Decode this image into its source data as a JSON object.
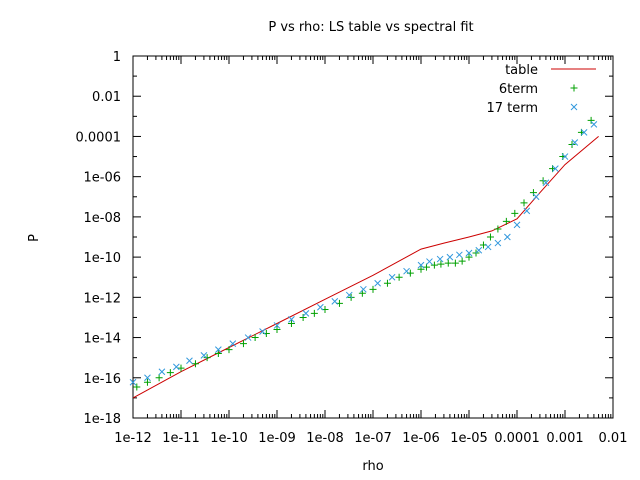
{
  "chart_data": {
    "type": "scatter",
    "title": "P vs rho: LS table vs spectral fit",
    "xlabel": "rho",
    "ylabel": "P",
    "xscale": "log",
    "yscale": "log",
    "xlim": [
      1e-12,
      0.01
    ],
    "ylim": [
      1e-18,
      1
    ],
    "x_ticks": [
      1e-12,
      1e-11,
      1e-10,
      1e-09,
      1e-08,
      1e-07,
      1e-06,
      1e-05,
      0.0001,
      0.001,
      0.01
    ],
    "x_tick_labels": [
      "1e-12",
      "1e-11",
      "1e-10",
      "1e-09",
      "1e-08",
      "1e-07",
      "1e-06",
      "1e-05",
      "0.0001",
      "0.001",
      "0.01"
    ],
    "y_ticks": [
      1e-18,
      1e-16,
      1e-14,
      1e-12,
      1e-10,
      1e-08,
      1e-06,
      0.0001,
      0.01,
      1
    ],
    "y_tick_labels": [
      "1e-18",
      "1e-16",
      "1e-14",
      "1e-12",
      "1e-10",
      "1e-08",
      "1e-06",
      "0.0001",
      "0.01",
      "1"
    ],
    "grid": false,
    "legend_position": "top-right",
    "series": [
      {
        "name": "table",
        "style": "line",
        "color": "#cc0000",
        "points": [
          [
            1e-12,
            1e-17
          ],
          [
            1e-11,
            2e-16
          ],
          [
            1e-10,
            3.2e-15
          ],
          [
            1e-09,
            5e-14
          ],
          [
            1e-08,
            8e-13
          ],
          [
            1e-07,
            1.25e-11
          ],
          [
            1e-06,
            2.5e-10
          ],
          [
            3e-06,
            5e-10
          ],
          [
            1e-05,
            1e-09
          ],
          [
            3e-05,
            2e-09
          ],
          [
            0.0001,
            8e-09
          ],
          [
            0.0003,
            1.6e-07
          ],
          [
            0.001,
            4e-06
          ],
          [
            0.005,
            0.0001
          ]
        ]
      },
      {
        "name": "6term",
        "style": "plus",
        "color": "#00a000",
        "points": [
          [
            1.2e-12,
            3.5e-17
          ],
          [
            2e-12,
            6e-17
          ],
          [
            3.5e-12,
            1e-16
          ],
          [
            6e-12,
            1.8e-16
          ],
          [
            1e-11,
            3e-16
          ],
          [
            2e-11,
            5e-16
          ],
          [
            3.5e-11,
            1e-15
          ],
          [
            6e-11,
            1.6e-15
          ],
          [
            1e-10,
            2.5e-15
          ],
          [
            2e-10,
            5e-15
          ],
          [
            3.5e-10,
            1e-14
          ],
          [
            6e-10,
            1.6e-14
          ],
          [
            1e-09,
            2.5e-14
          ],
          [
            2e-09,
            5e-14
          ],
          [
            3.5e-09,
            1e-13
          ],
          [
            6e-09,
            1.6e-13
          ],
          [
            1e-08,
            2.5e-13
          ],
          [
            2e-08,
            5e-13
          ],
          [
            3.5e-08,
            1e-12
          ],
          [
            6e-08,
            1.6e-12
          ],
          [
            1e-07,
            2.5e-12
          ],
          [
            2e-07,
            5e-12
          ],
          [
            3.5e-07,
            1e-11
          ],
          [
            6e-07,
            1.6e-11
          ],
          [
            1e-06,
            2.5e-11
          ],
          [
            1.3e-06,
            3.2e-11
          ],
          [
            1.9e-06,
            4e-11
          ],
          [
            2.6e-06,
            4.5e-11
          ],
          [
            3.7e-06,
            5e-11
          ],
          [
            5.2e-06,
            5e-11
          ],
          [
            7.2e-06,
            6.3e-11
          ],
          [
            1e-05,
            1e-10
          ],
          [
            1.4e-05,
            1.6e-10
          ],
          [
            2e-05,
            4e-10
          ],
          [
            2.8e-05,
            1e-09
          ],
          [
            4e-05,
            2.5e-09
          ],
          [
            6e-05,
            6e-09
          ],
          [
            9e-05,
            1.5e-08
          ],
          [
            0.00014,
            5e-08
          ],
          [
            0.00022,
            1.6e-07
          ],
          [
            0.00035,
            6.3e-07
          ],
          [
            0.00055,
            2.5e-06
          ],
          [
            0.0009,
            1e-05
          ],
          [
            0.0014,
            4e-05
          ],
          [
            0.0022,
            0.00016
          ],
          [
            0.0035,
            0.00063
          ]
        ]
      },
      {
        "name": "17 term",
        "style": "cross",
        "color": "#3399dd",
        "points": [
          [
            1e-12,
            6e-17
          ],
          [
            2e-12,
            1e-16
          ],
          [
            4e-12,
            2e-16
          ],
          [
            8e-12,
            3.5e-16
          ],
          [
            1.5e-11,
            7e-16
          ],
          [
            3e-11,
            1.3e-15
          ],
          [
            6e-11,
            2.5e-15
          ],
          [
            1.2e-10,
            5e-15
          ],
          [
            2.5e-10,
            1e-14
          ],
          [
            5e-10,
            2e-14
          ],
          [
            1e-09,
            4e-14
          ],
          [
            2e-09,
            8e-14
          ],
          [
            4e-09,
            1.6e-13
          ],
          [
            8e-09,
            3.2e-13
          ],
          [
            1.6e-08,
            6.3e-13
          ],
          [
            3.2e-08,
            1.3e-12
          ],
          [
            6.3e-08,
            2.5e-12
          ],
          [
            1.25e-07,
            5e-12
          ],
          [
            2.5e-07,
            1e-11
          ],
          [
            5e-07,
            2e-11
          ],
          [
            1e-06,
            4e-11
          ],
          [
            1.5e-06,
            6e-11
          ],
          [
            2.5e-06,
            8e-11
          ],
          [
            4e-06,
            1e-10
          ],
          [
            6.3e-06,
            1.3e-10
          ],
          [
            1e-05,
            1.6e-10
          ],
          [
            1.6e-05,
            2.2e-10
          ],
          [
            2.5e-05,
            3.2e-10
          ],
          [
            4e-05,
            5e-10
          ],
          [
            6.3e-05,
            1e-09
          ],
          [
            0.0001,
            4e-09
          ],
          [
            0.00016,
            2e-08
          ],
          [
            0.00025,
            1e-07
          ],
          [
            0.0004,
            5e-07
          ],
          [
            0.00063,
            2.5e-06
          ],
          [
            0.001,
            1e-05
          ],
          [
            0.0016,
            5e-05
          ],
          [
            0.0025,
            0.00016
          ],
          [
            0.004,
            0.0004
          ]
        ]
      }
    ]
  }
}
